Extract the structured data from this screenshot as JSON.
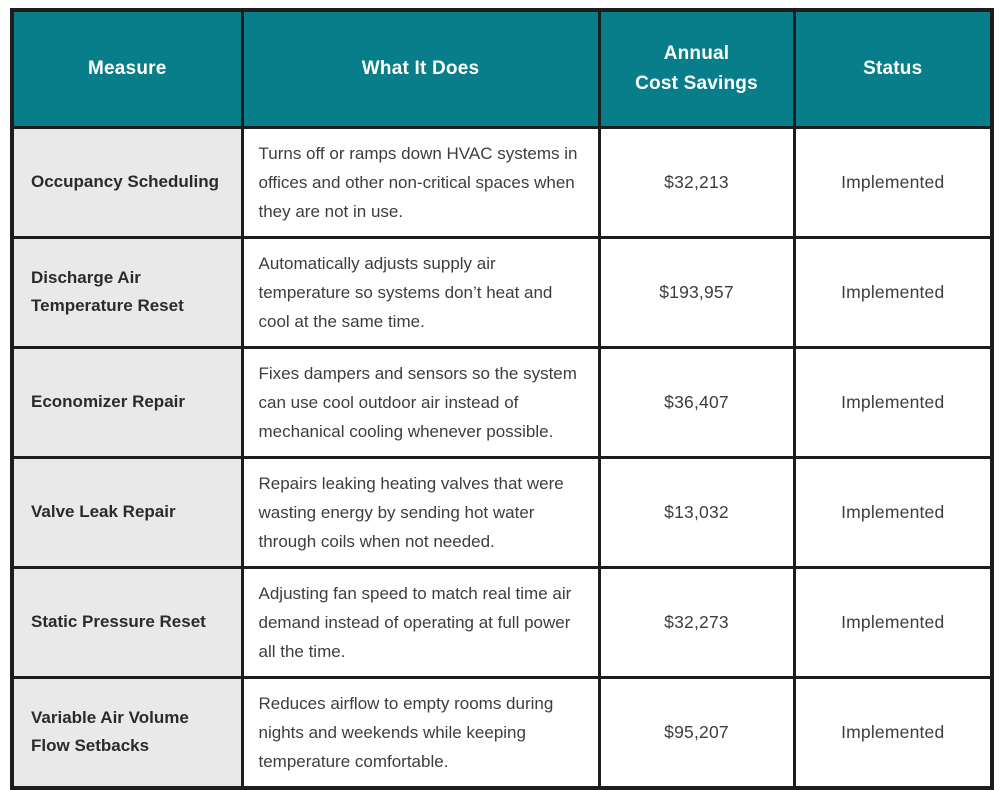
{
  "table": {
    "columns": {
      "measure": "Measure",
      "what": "What It Does",
      "savings": "Annual\nCost Savings",
      "status": "Status"
    },
    "rows": [
      {
        "measure": "Occupancy Scheduling",
        "what": "Turns off or ramps down HVAC systems in offices and other non-critical spaces when they are not in use.",
        "savings": "$32,213",
        "status": "Implemented"
      },
      {
        "measure": "Discharge Air Temperature Reset",
        "what": "Automatically adjusts supply air temperature so systems don’t heat and cool at the same time.",
        "savings": "$193,957",
        "status": "Implemented"
      },
      {
        "measure": "Economizer Repair",
        "what": "Fixes dampers and sensors so the system can use cool outdoor air instead of mechanical cooling whenever possible.",
        "savings": "$36,407",
        "status": "Implemented"
      },
      {
        "measure": "Valve Leak Repair",
        "what": "Repairs leaking heating valves that were wasting energy by sending hot water through coils when not needed.",
        "savings": "$13,032",
        "status": "Implemented"
      },
      {
        "measure": "Static Pressure Reset",
        "what": "Adjusting fan speed to match real time air demand instead of operating at full power all the time.",
        "savings": "$32,273",
        "status": "Implemented"
      },
      {
        "measure": "Variable Air Volume Flow Setbacks",
        "what": "Reduces airflow to empty rooms during nights and weekends while keeping temperature comfortable.",
        "savings": "$95,207",
        "status": "Implemented"
      }
    ]
  },
  "colors": {
    "header_bg": "#087e8b",
    "header_text": "#ffffff",
    "measure_col_bg": "#e8e9e8",
    "body_text": "#3d3d3d",
    "border": "#1d1d1d"
  }
}
